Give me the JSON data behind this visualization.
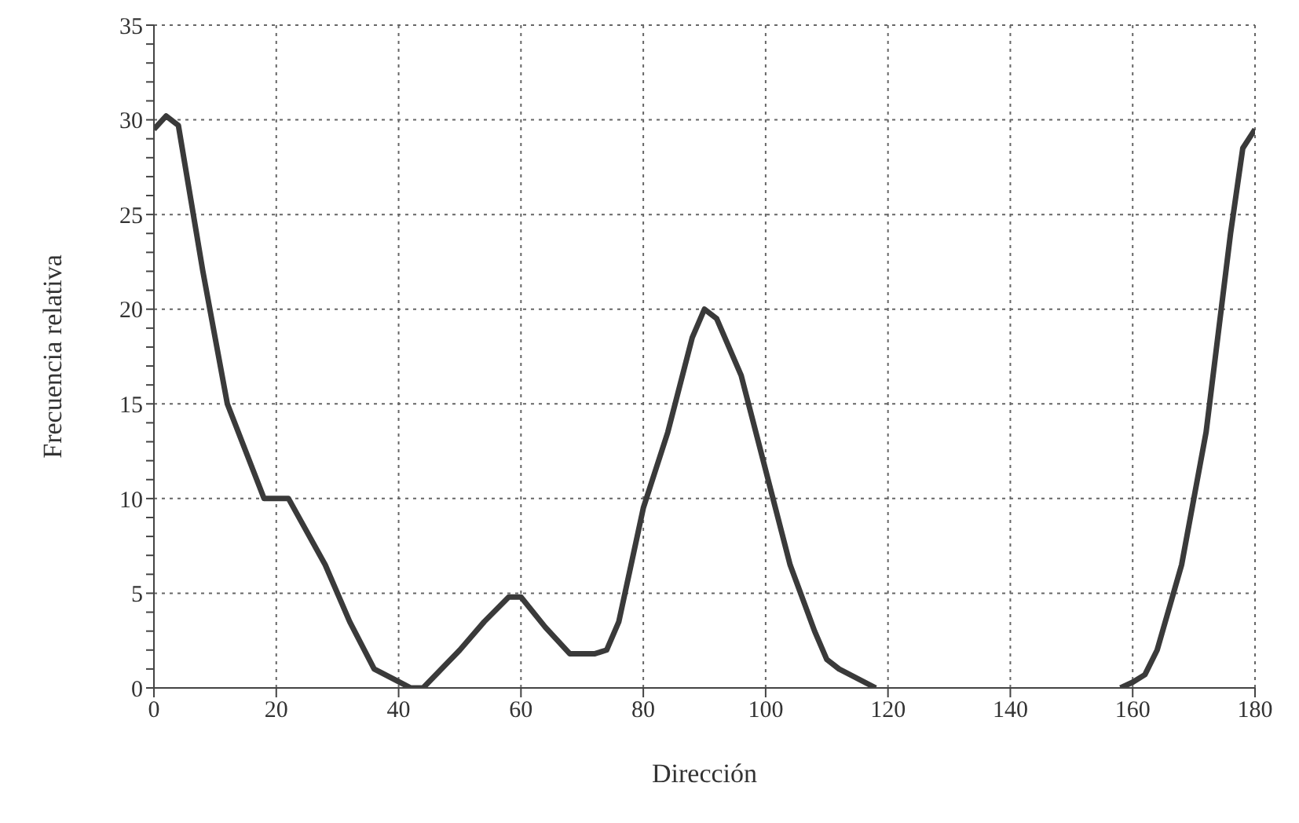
{
  "chart_data": {
    "type": "line",
    "xlabel": "Dirección",
    "ylabel": "Frecuencia relativa",
    "x": [
      0,
      2,
      4,
      8,
      12,
      18,
      22,
      28,
      32,
      36,
      42,
      44,
      50,
      54,
      58,
      60,
      64,
      68,
      72,
      74,
      76,
      80,
      84,
      88,
      90,
      92,
      96,
      100,
      104,
      108,
      110,
      112,
      118,
      138,
      158,
      160,
      162,
      164,
      168,
      172,
      176,
      178,
      180
    ],
    "series": [
      {
        "color": "#3a3a3a",
        "values": [
          29.5,
          30.2,
          29.7,
          22,
          15,
          10,
          10,
          6.5,
          3.5,
          1,
          0,
          0,
          2,
          3.5,
          4.8,
          4.8,
          3.2,
          1.8,
          1.8,
          2,
          3.5,
          9.5,
          13.5,
          18.5,
          20,
          19.5,
          16.5,
          11.5,
          6.5,
          3,
          1.5,
          1,
          0,
          null,
          0,
          0.3,
          0.7,
          2,
          6.5,
          13.5,
          24,
          28.5,
          29.5
        ]
      }
    ],
    "xlim": [
      0,
      180
    ],
    "xticks": [
      0,
      20,
      40,
      60,
      80,
      100,
      120,
      140,
      160,
      180
    ],
    "ylim": [
      0,
      35
    ],
    "yticks": [
      0,
      {
        "value": 1,
        "label": null
      },
      {
        "value": 2,
        "label": null
      },
      {
        "value": 3,
        "label": null
      },
      {
        "value": 4,
        "label": null
      },
      5,
      {
        "value": 6,
        "label": null
      },
      {
        "value": 7,
        "label": null
      },
      {
        "value": 8,
        "label": null
      },
      {
        "value": 9,
        "label": null
      },
      10,
      {
        "value": 11,
        "label": null
      },
      {
        "value": 12,
        "label": null
      },
      {
        "value": 13,
        "label": null
      },
      {
        "value": 14,
        "label": null
      },
      15,
      {
        "value": 16,
        "label": null
      },
      {
        "value": 17,
        "label": null
      },
      {
        "value": 18,
        "label": null
      },
      {
        "value": 19,
        "label": null
      },
      20,
      {
        "value": 21,
        "label": null
      },
      {
        "value": 22,
        "label": null
      },
      {
        "value": 23,
        "label": null
      },
      {
        "value": 24,
        "label": null
      },
      25,
      {
        "value": 26,
        "label": null
      },
      {
        "value": 27,
        "label": null
      },
      {
        "value": 28,
        "label": null
      },
      {
        "value": 29,
        "label": null
      },
      30,
      {
        "value": 31,
        "label": null
      },
      {
        "value": 32,
        "label": null
      },
      {
        "value": 33,
        "label": null
      },
      {
        "value": 34,
        "label": null
      },
      35
    ],
    "grid": true,
    "line_style": "solid",
    "marker": "none"
  }
}
